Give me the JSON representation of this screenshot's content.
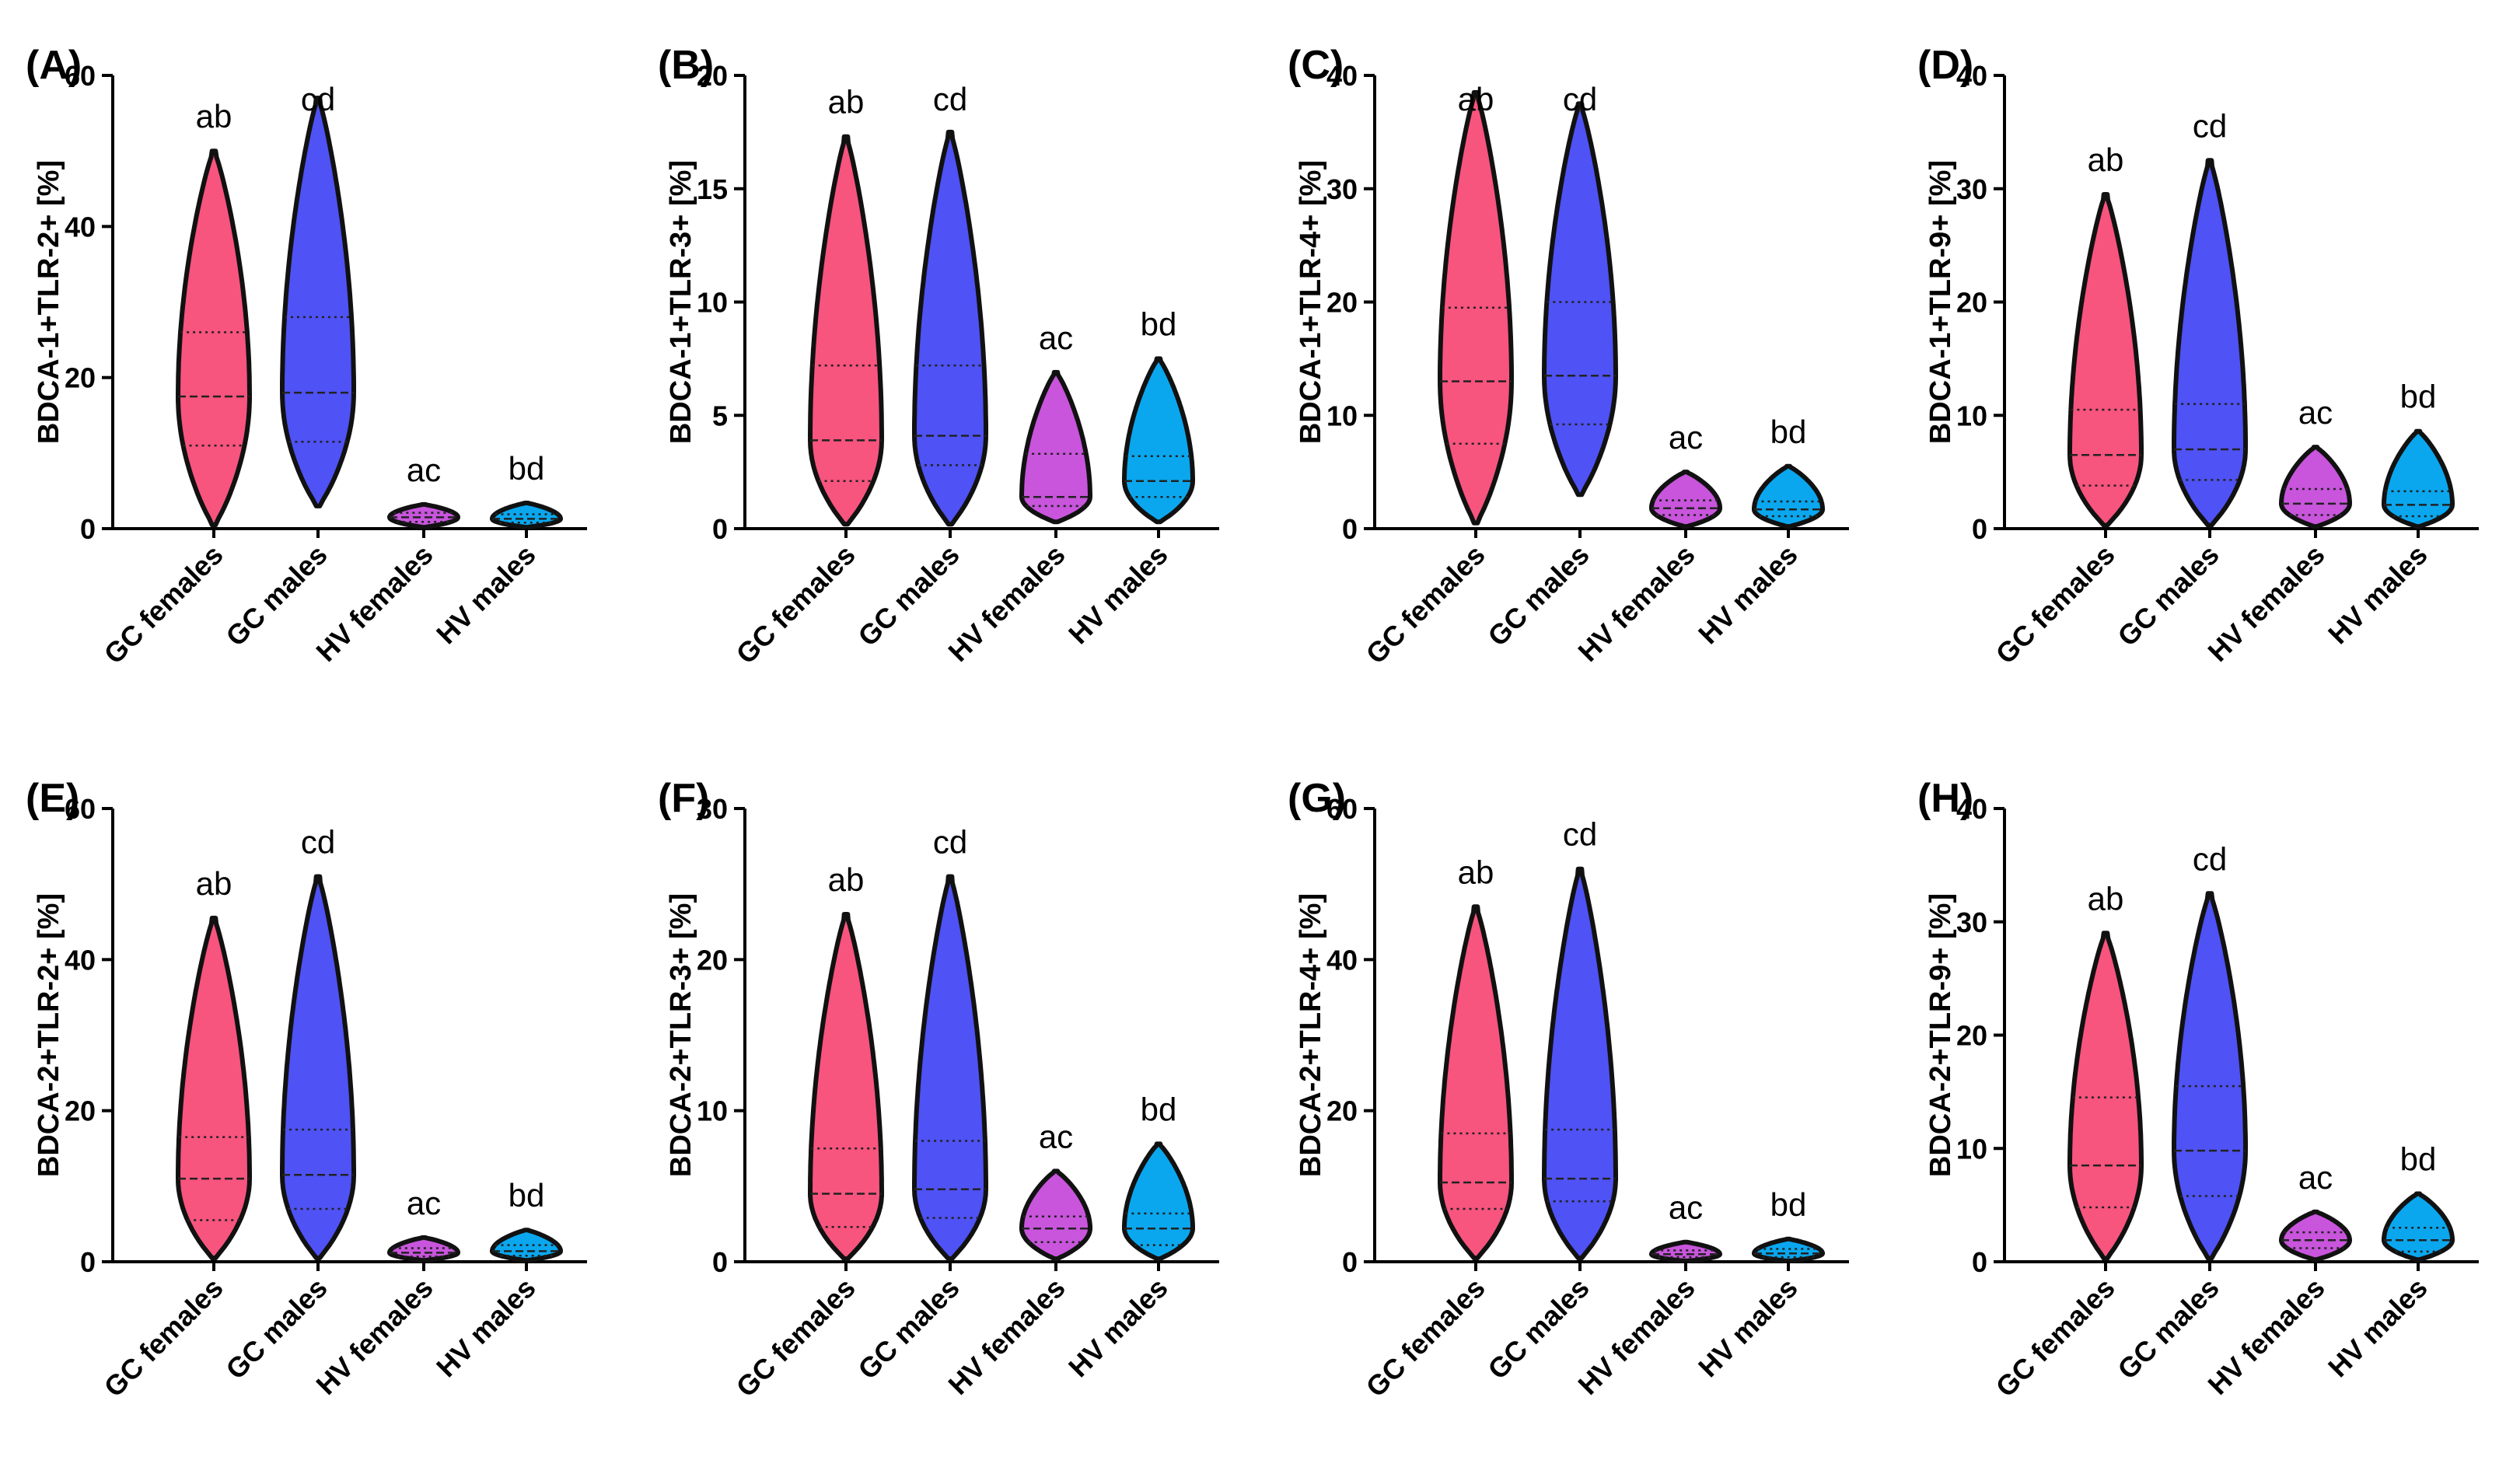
{
  "figure": {
    "colors": {
      "GC females": "#f7547e",
      "GC males": "#4f52f4",
      "HV females": "#c855dc",
      "HV males": "#0aa7ef",
      "outline": "#111111"
    }
  },
  "chart_data": [
    {
      "type": "violin",
      "panel": "(A)",
      "ylabel": "BDCA-1+TLR-2+ [%]",
      "ylim": [
        0,
        60
      ],
      "yticks": [
        0,
        20,
        40,
        60
      ],
      "categories": [
        "GC females",
        "GC males",
        "HV females",
        "HV males"
      ],
      "letters": [
        "ab",
        "cd",
        "ac",
        "bd"
      ],
      "series": [
        {
          "name": "GC females",
          "min": 0.5,
          "max": 50,
          "q1": 11,
          "median": 17.5,
          "q3": 26
        },
        {
          "name": "GC males",
          "min": 3,
          "max": 57,
          "q1": 11.5,
          "median": 18,
          "q3": 28
        },
        {
          "name": "HV females",
          "min": 0.2,
          "max": 3.2,
          "q1": 0.9,
          "median": 1.5,
          "q3": 2.1
        },
        {
          "name": "HV males",
          "min": 0.2,
          "max": 3.4,
          "q1": 0.8,
          "median": 1.3,
          "q3": 1.9
        }
      ]
    },
    {
      "type": "violin",
      "panel": "(B)",
      "ylabel": "BDCA-1+TLR-3+ [%]",
      "ylim": [
        0,
        20
      ],
      "yticks": [
        0,
        5,
        10,
        15,
        20
      ],
      "categories": [
        "GC females",
        "GC males",
        "HV females",
        "HV males"
      ],
      "letters": [
        "ab",
        "cd",
        "ac",
        "bd"
      ],
      "series": [
        {
          "name": "GC females",
          "min": 0.2,
          "max": 17.3,
          "q1": 2.1,
          "median": 3.9,
          "q3": 7.2
        },
        {
          "name": "GC males",
          "min": 0.2,
          "max": 17.5,
          "q1": 2.8,
          "median": 4.1,
          "q3": 7.2
        },
        {
          "name": "HV females",
          "min": 0.3,
          "max": 6.9,
          "q1": 1.0,
          "median": 1.4,
          "q3": 3.3
        },
        {
          "name": "HV males",
          "min": 0.3,
          "max": 7.5,
          "q1": 1.4,
          "median": 2.1,
          "q3": 3.2
        }
      ]
    },
    {
      "type": "violin",
      "panel": "(C)",
      "ylabel": "BDCA-1+TLR-4+ [%]",
      "ylim": [
        0,
        40
      ],
      "yticks": [
        0,
        10,
        20,
        30,
        40
      ],
      "categories": [
        "GC females",
        "GC males",
        "HV females",
        "HV males"
      ],
      "letters": [
        "ab",
        "cd",
        "ac",
        "bd"
      ],
      "series": [
        {
          "name": "GC females",
          "min": 0.5,
          "max": 38.5,
          "q1": 7.5,
          "median": 13,
          "q3": 19.5
        },
        {
          "name": "GC males",
          "min": 3,
          "max": 37.5,
          "q1": 9.2,
          "median": 13.5,
          "q3": 20
        },
        {
          "name": "HV females",
          "min": 0.2,
          "max": 5,
          "q1": 1.2,
          "median": 1.8,
          "q3": 2.5
        },
        {
          "name": "HV males",
          "min": 0.2,
          "max": 5.5,
          "q1": 1.1,
          "median": 1.7,
          "q3": 2.4
        }
      ]
    },
    {
      "type": "violin",
      "panel": "(D)",
      "ylabel": "BDCA-1+TLR-9+ [%]",
      "ylim": [
        0,
        40
      ],
      "yticks": [
        0,
        10,
        20,
        30,
        40
      ],
      "categories": [
        "GC females",
        "GC males",
        "HV females",
        "HV males"
      ],
      "letters": [
        "ab",
        "cd",
        "ac",
        "bd"
      ],
      "series": [
        {
          "name": "GC females",
          "min": 0.3,
          "max": 29.5,
          "q1": 3.8,
          "median": 6.5,
          "q3": 10.5
        },
        {
          "name": "GC males",
          "min": 0.3,
          "max": 32.5,
          "q1": 4.3,
          "median": 7,
          "q3": 11
        },
        {
          "name": "HV females",
          "min": 0.2,
          "max": 7.2,
          "q1": 1.2,
          "median": 2.2,
          "q3": 3.5
        },
        {
          "name": "HV males",
          "min": 0.2,
          "max": 8.6,
          "q1": 1.1,
          "median": 2.1,
          "q3": 3.3
        }
      ]
    },
    {
      "type": "violin",
      "panel": "(E)",
      "ylabel": "BDCA-2+TLR-2+ [%]",
      "ylim": [
        0,
        60
      ],
      "yticks": [
        0,
        20,
        40,
        60
      ],
      "categories": [
        "GC females",
        "GC males",
        "HV females",
        "HV males"
      ],
      "letters": [
        "ab",
        "cd",
        "ac",
        "bd"
      ],
      "series": [
        {
          "name": "GC females",
          "min": 0.5,
          "max": 45.5,
          "q1": 5.5,
          "median": 11,
          "q3": 16.5
        },
        {
          "name": "GC males",
          "min": 0.5,
          "max": 51,
          "q1": 7,
          "median": 11.5,
          "q3": 17.5
        },
        {
          "name": "HV females",
          "min": 0.2,
          "max": 3.2,
          "q1": 0.7,
          "median": 1.2,
          "q3": 1.8
        },
        {
          "name": "HV males",
          "min": 0.2,
          "max": 4.2,
          "q1": 0.8,
          "median": 1.4,
          "q3": 2.2
        }
      ]
    },
    {
      "type": "violin",
      "panel": "(F)",
      "ylabel": "BDCA-2+TLR-3+ [%]",
      "ylim": [
        0,
        30
      ],
      "yticks": [
        0,
        10,
        20,
        30
      ],
      "categories": [
        "GC females",
        "GC males",
        "HV females",
        "HV males"
      ],
      "letters": [
        "ab",
        "cd",
        "ac",
        "bd"
      ],
      "series": [
        {
          "name": "GC females",
          "min": 0.2,
          "max": 23,
          "q1": 2.3,
          "median": 4.5,
          "q3": 7.5
        },
        {
          "name": "GC males",
          "min": 0.2,
          "max": 25.5,
          "q1": 2.9,
          "median": 4.8,
          "q3": 8
        },
        {
          "name": "HV females",
          "min": 0.2,
          "max": 6,
          "q1": 1.3,
          "median": 2.2,
          "q3": 3
        },
        {
          "name": "HV males",
          "min": 0.2,
          "max": 7.8,
          "q1": 1.1,
          "median": 2.2,
          "q3": 3.2
        }
      ]
    },
    {
      "type": "violin",
      "panel": "(G)",
      "ylabel": "BDCA-2+TLR-4+ [%]",
      "ylim": [
        0,
        60
      ],
      "yticks": [
        0,
        20,
        40,
        60
      ],
      "categories": [
        "GC females",
        "GC males",
        "HV females",
        "HV males"
      ],
      "letters": [
        "ab",
        "cd",
        "ac",
        "bd"
      ],
      "series": [
        {
          "name": "GC females",
          "min": 0.5,
          "max": 47,
          "q1": 7,
          "median": 10.5,
          "q3": 17
        },
        {
          "name": "GC males",
          "min": 0.5,
          "max": 52,
          "q1": 8,
          "median": 11,
          "q3": 17.5
        },
        {
          "name": "HV females",
          "min": 0.1,
          "max": 2.6,
          "q1": 0.6,
          "median": 1.0,
          "q3": 1.5
        },
        {
          "name": "HV males",
          "min": 0.1,
          "max": 3,
          "q1": 0.6,
          "median": 1.1,
          "q3": 1.7
        }
      ]
    },
    {
      "type": "violin",
      "panel": "(H)",
      "ylabel": "BDCA-2+TLR-9+ [%]",
      "ylim": [
        0,
        40
      ],
      "yticks": [
        0,
        10,
        20,
        30,
        40
      ],
      "categories": [
        "GC females",
        "GC males",
        "HV females",
        "HV males"
      ],
      "letters": [
        "ab",
        "cd",
        "ac",
        "bd"
      ],
      "series": [
        {
          "name": "GC females",
          "min": 0.3,
          "max": 29,
          "q1": 4.8,
          "median": 8.5,
          "q3": 14.5
        },
        {
          "name": "GC males",
          "min": 0.3,
          "max": 32.5,
          "q1": 5.8,
          "median": 9.8,
          "q3": 15.5
        },
        {
          "name": "HV females",
          "min": 0.2,
          "max": 4.4,
          "q1": 1.2,
          "median": 1.9,
          "q3": 2.6
        },
        {
          "name": "HV males",
          "min": 0.2,
          "max": 6,
          "q1": 0.9,
          "median": 1.9,
          "q3": 3
        }
      ]
    }
  ]
}
